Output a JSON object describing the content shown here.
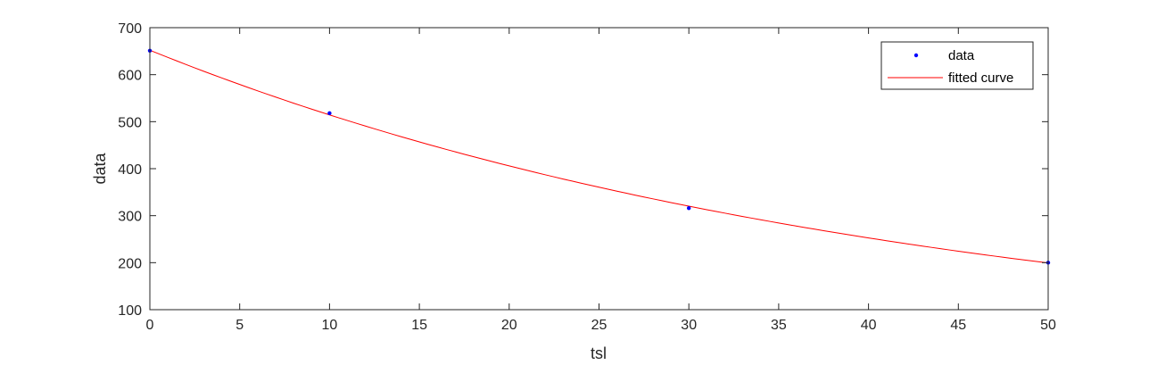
{
  "chart_data": {
    "type": "scatter",
    "title": "",
    "xlabel": "tsl",
    "ylabel": "data",
    "xlim": [
      0,
      50
    ],
    "ylim": [
      100,
      700
    ],
    "xticks": [
      0,
      5,
      10,
      15,
      20,
      25,
      30,
      35,
      40,
      45,
      50
    ],
    "yticks": [
      100,
      200,
      300,
      400,
      500,
      600,
      700
    ],
    "grid": false,
    "legend_position": "top-right",
    "series": [
      {
        "name": "data",
        "kind": "markers",
        "color": "#0000ff",
        "points": [
          {
            "x": 0,
            "y": 651
          },
          {
            "x": 10,
            "y": 518
          },
          {
            "x": 30,
            "y": 316
          },
          {
            "x": 50,
            "y": 200
          }
        ]
      },
      {
        "name": "fitted curve",
        "kind": "line",
        "color": "#ff0000",
        "model": "exponential",
        "a": 652,
        "b": -0.0237
      }
    ]
  }
}
